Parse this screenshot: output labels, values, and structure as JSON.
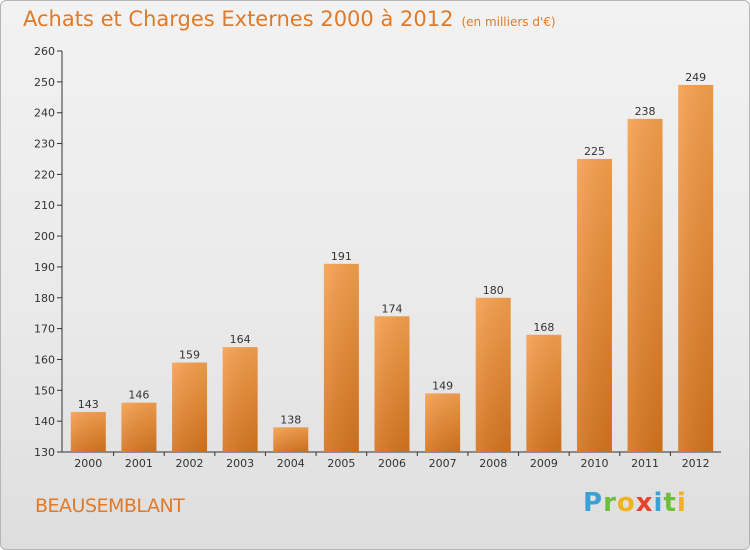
{
  "header": {
    "title": "Achats et Charges Externes 2000 à 2012",
    "subtitle": "(en milliers d'€)"
  },
  "footer": {
    "town": "BEAUSEMBLANT",
    "logo_letters": [
      "P",
      "r",
      "o",
      "x",
      "i",
      "t",
      "i"
    ]
  },
  "colors": {
    "bar_top": "#f5a04e",
    "bar_bottom": "#d4731f",
    "accent": "#e07a28"
  },
  "chart_data": {
    "type": "bar",
    "title": "Achats et Charges Externes 2000 à 2012",
    "subtitle": "(en milliers d'€)",
    "categories": [
      "2000",
      "2001",
      "2002",
      "2003",
      "2004",
      "2005",
      "2006",
      "2007",
      "2008",
      "2009",
      "2010",
      "2011",
      "2012"
    ],
    "values": [
      143,
      146,
      159,
      164,
      138,
      191,
      174,
      149,
      180,
      168,
      225,
      238,
      249
    ],
    "ylim": [
      130,
      260
    ],
    "yticks": [
      130,
      140,
      150,
      160,
      170,
      180,
      190,
      200,
      210,
      220,
      230,
      240,
      250,
      260
    ],
    "grid": false,
    "legend": "none"
  }
}
